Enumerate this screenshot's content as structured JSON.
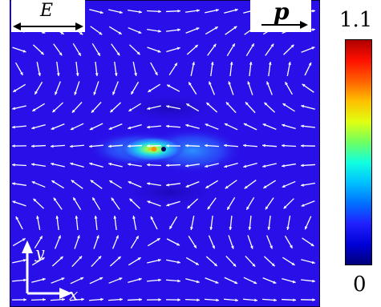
{
  "labels": {
    "e_field": "E",
    "momentum": "p",
    "axis_x": "x",
    "axis_y": "y"
  },
  "colorbar": {
    "max_label": "1.1",
    "min_label": "0",
    "stops": [
      "#00007a",
      "#0000d8",
      "#2020ff",
      "#0070ff",
      "#00c0ff",
      "#10ffe0",
      "#70ff60",
      "#e0ff10",
      "#ffc000",
      "#ff6000",
      "#ff1000",
      "#b00000"
    ]
  },
  "colors": {
    "background_field": "#2a10e8",
    "arrow": "#ffffff",
    "hotspot_center": "#ffb000",
    "hotspot_mid": "#30e0c0",
    "hotspot_outer": "#2a80ff"
  }
}
